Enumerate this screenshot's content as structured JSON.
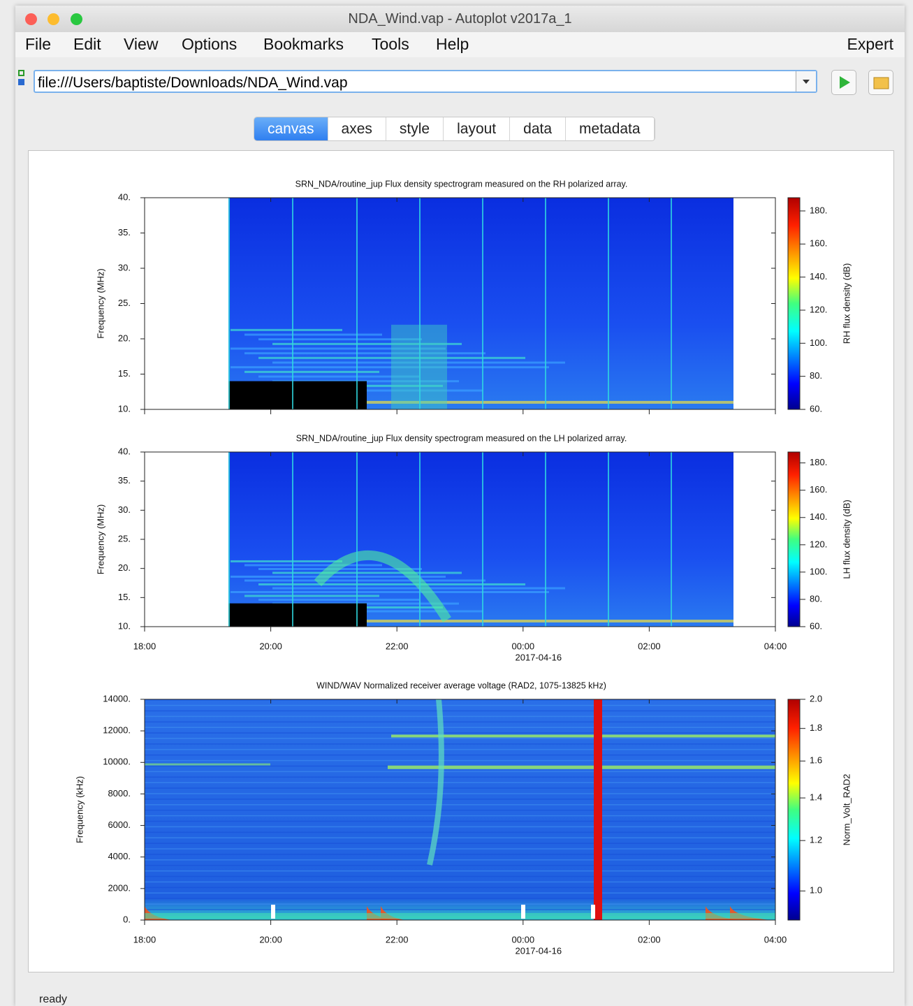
{
  "window": {
    "title": "NDA_Wind.vap - Autoplot v2017a_1"
  },
  "menu": [
    "File",
    "Edit",
    "View",
    "Options",
    "Bookmarks",
    "Tools",
    "Help"
  ],
  "expert": "Expert",
  "address": "file:///Users/baptiste/Downloads/NDA_Wind.vap",
  "tabs": [
    "canvas",
    "axes",
    "style",
    "layout",
    "data",
    "metadata"
  ],
  "active_tab": 0,
  "status": "ready",
  "chart_data": [
    {
      "type": "spectrogram",
      "title": "SRN_NDA/routine_jup  Flux density spectrogram measured on the RH polarized array.",
      "ylabel": "Frequency (MHz)",
      "ylim": [
        10,
        40
      ],
      "yticks": [
        {
          "value": 10,
          "label": "10."
        },
        {
          "value": 15,
          "label": "15."
        },
        {
          "value": 20,
          "label": "20."
        },
        {
          "value": 25,
          "label": "25."
        },
        {
          "value": 30,
          "label": "30."
        },
        {
          "value": 35,
          "label": "35."
        },
        {
          "value": 40,
          "label": "40."
        }
      ],
      "xlim": [
        18,
        28
      ],
      "xticks": [
        18,
        20,
        22,
        24,
        26,
        28
      ],
      "colorbar": {
        "label": "RH flux density (dB)",
        "zlim": [
          60,
          188
        ],
        "zticks": [
          {
            "value": 60,
            "label": "60."
          },
          {
            "value": 80,
            "label": "80."
          },
          {
            "value": 100,
            "label": "100."
          },
          {
            "value": 120,
            "label": "120."
          },
          {
            "value": 140,
            "label": "140."
          },
          {
            "value": 160,
            "label": "160."
          },
          {
            "value": 180,
            "label": "180."
          }
        ],
        "log": false
      }
    },
    {
      "type": "spectrogram",
      "title": "SRN_NDA/routine_jup  Flux density spectrogram measured on the LH polarized array.",
      "ylabel": "Frequency (MHz)",
      "ylim": [
        10,
        40
      ],
      "yticks": [
        {
          "value": 10,
          "label": "10."
        },
        {
          "value": 15,
          "label": "15."
        },
        {
          "value": 20,
          "label": "20."
        },
        {
          "value": 25,
          "label": "25."
        },
        {
          "value": 30,
          "label": "30."
        },
        {
          "value": 35,
          "label": "35."
        },
        {
          "value": 40,
          "label": "40."
        }
      ],
      "xlim": [
        18,
        28
      ],
      "xticks": [
        {
          "value": 18,
          "label": "18:00"
        },
        {
          "value": 20,
          "label": "20:00"
        },
        {
          "value": 22,
          "label": "22:00"
        },
        {
          "value": 24,
          "label": "00:00"
        },
        {
          "value": 26,
          "label": "02:00"
        },
        {
          "value": 28,
          "label": "04:00"
        }
      ],
      "xdate": "2017-04-16",
      "colorbar": {
        "label": "LH flux density (dB)",
        "zlim": [
          60,
          188
        ],
        "zticks": [
          {
            "value": 60,
            "label": "60."
          },
          {
            "value": 80,
            "label": "80."
          },
          {
            "value": 100,
            "label": "100."
          },
          {
            "value": 120,
            "label": "120."
          },
          {
            "value": 140,
            "label": "140."
          },
          {
            "value": 160,
            "label": "160."
          },
          {
            "value": 180,
            "label": "180."
          }
        ],
        "log": false
      }
    },
    {
      "type": "spectrogram",
      "title": "WIND/WAV  Normalized receiver average voltage (RAD2, 1075-13825 kHz)",
      "ylabel": "Frequency (kHz)",
      "ylim": [
        0,
        14000
      ],
      "yticks": [
        {
          "value": 0,
          "label": "0."
        },
        {
          "value": 2000,
          "label": "2000."
        },
        {
          "value": 4000,
          "label": "4000."
        },
        {
          "value": 6000,
          "label": "6000."
        },
        {
          "value": 8000,
          "label": "8000."
        },
        {
          "value": 10000,
          "label": "10000."
        },
        {
          "value": 12000,
          "label": "12000."
        },
        {
          "value": 14000,
          "label": "14000."
        }
      ],
      "xlim": [
        18,
        28
      ],
      "xticks": [
        {
          "value": 18,
          "label": "18:00"
        },
        {
          "value": 20,
          "label": "20:00"
        },
        {
          "value": 22,
          "label": "22:00"
        },
        {
          "value": 24,
          "label": "00:00"
        },
        {
          "value": 26,
          "label": "02:00"
        },
        {
          "value": 28,
          "label": "04:00"
        }
      ],
      "xdate": "2017-04-16",
      "colorbar": {
        "label": "Norm_Volt_RAD2",
        "zlim": [
          0.9,
          2.0
        ],
        "zticks": [
          {
            "value": 1.0,
            "label": "1.0"
          },
          {
            "value": 1.2,
            "label": "1.2"
          },
          {
            "value": 1.4,
            "label": "1.4"
          },
          {
            "value": 1.6,
            "label": "1.6"
          },
          {
            "value": 1.8,
            "label": "1.8"
          },
          {
            "value": 2.0,
            "label": "2.0"
          }
        ],
        "log": true
      }
    }
  ]
}
